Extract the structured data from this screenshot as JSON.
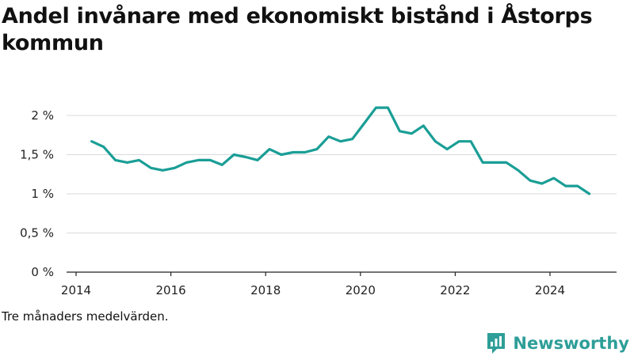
{
  "title": "Andel invånare med ekonomiskt bistånd i Åstorps kommun",
  "footnote": "Tre månaders medelvärden.",
  "brand": {
    "name": "Newsworthy",
    "icon": "newsworthy-logo-icon",
    "color": "#2e9e98"
  },
  "colors": {
    "line": "#1a9e96",
    "grid": "#d9d9d9",
    "axis": "#222222"
  },
  "chart_data": {
    "type": "line",
    "title": "Andel invånare med ekonomiskt bistånd i Åstorps kommun",
    "xlabel": "",
    "ylabel": "",
    "xlim": [
      2014.0,
      2025.3
    ],
    "ylim": [
      0,
      2.2
    ],
    "x_ticks": [
      2014,
      2016,
      2018,
      2020,
      2022,
      2024
    ],
    "x_tick_labels": [
      "2014",
      "2016",
      "2018",
      "2020",
      "2022",
      "2024"
    ],
    "y_ticks": [
      0,
      0.5,
      1,
      1.5,
      2
    ],
    "y_tick_labels": [
      "0 %",
      "0,5 %",
      "1 %",
      "1,5 %",
      "2 %"
    ],
    "grid": "horizontal",
    "series": [
      {
        "name": "",
        "x": [
          2014.33,
          2014.58,
          2014.83,
          2015.08,
          2015.33,
          2015.58,
          2015.83,
          2016.08,
          2016.33,
          2016.58,
          2016.83,
          2017.08,
          2017.33,
          2017.58,
          2017.83,
          2018.08,
          2018.33,
          2018.58,
          2018.83,
          2019.08,
          2019.33,
          2019.58,
          2019.83,
          2020.08,
          2020.33,
          2020.58,
          2020.83,
          2021.08,
          2021.33,
          2021.58,
          2021.83,
          2022.08,
          2022.33,
          2022.58,
          2022.83,
          2023.08,
          2023.33,
          2023.58,
          2023.83,
          2024.08,
          2024.33,
          2024.58,
          2024.83
        ],
        "values": [
          1.67,
          1.6,
          1.43,
          1.4,
          1.43,
          1.33,
          1.3,
          1.33,
          1.4,
          1.43,
          1.43,
          1.37,
          1.5,
          1.47,
          1.43,
          1.57,
          1.5,
          1.53,
          1.53,
          1.57,
          1.73,
          1.67,
          1.7,
          1.9,
          2.1,
          2.1,
          1.8,
          1.77,
          1.87,
          1.67,
          1.57,
          1.67,
          1.67,
          1.4,
          1.4,
          1.4,
          1.3,
          1.17,
          1.13,
          1.2,
          1.1,
          1.1,
          1.0
        ]
      }
    ]
  }
}
